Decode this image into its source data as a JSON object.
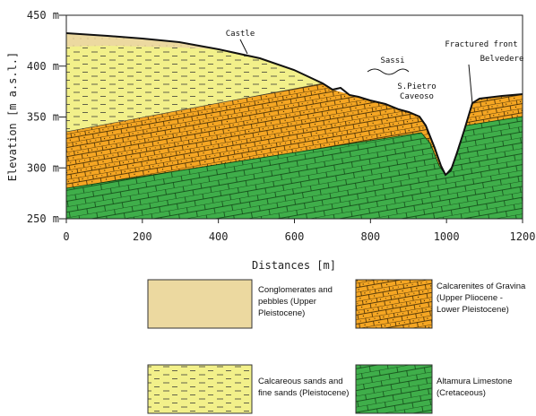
{
  "axes": {
    "y_title": "Elevation [m a.s.l.]",
    "x_title": "Distances [m]",
    "xlim": [
      0,
      1200
    ],
    "ylim": [
      250,
      450
    ],
    "xticks": [
      0,
      200,
      400,
      600,
      800,
      1000,
      1200
    ],
    "yticks": [
      {
        "value": 250,
        "label": "250 m"
      },
      {
        "value": 300,
        "label": "300 m"
      },
      {
        "value": 350,
        "label": "350 m"
      },
      {
        "value": 400,
        "label": "400 m"
      },
      {
        "value": 450,
        "label": "450 m"
      }
    ]
  },
  "annotations": {
    "castle": "Castle",
    "sassi": "Sassi",
    "san_pietro": [
      "S.Pietro",
      "Caveoso"
    ],
    "fractured_front": "Fractured front",
    "belvedere": "Belvedere"
  },
  "legend": [
    {
      "lines": [
        "Conglomerates and",
        "pebbles (Upper",
        "Pleistocene)"
      ]
    },
    {
      "lines": [
        "Calcarenites of Gravina",
        "(Upper Pliocene -",
        "Lower Pleistocene)"
      ]
    },
    {
      "lines": [
        "Calcareous sands and",
        "fine sands (Pleistocene)"
      ]
    },
    {
      "lines": [
        "Altamura Limestone",
        "(Cretaceous)"
      ]
    }
  ]
}
